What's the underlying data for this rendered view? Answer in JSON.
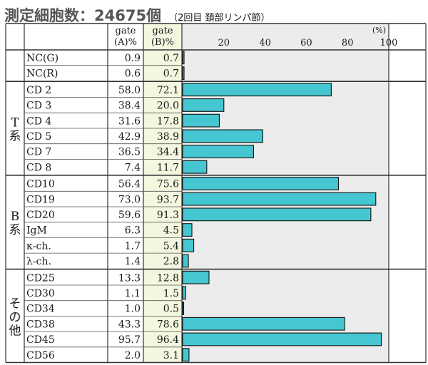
{
  "header": {
    "title": "測定細胞数：24675個",
    "subtitle": "（2回目 頚部リンパ節）"
  },
  "colors": {
    "bar": "#45c6d0",
    "bar_border": "#111111",
    "plot_bg": "#ececec",
    "col_b_bg": "#f4f6df",
    "grid": "#333333"
  },
  "chart_data": {
    "type": "bar",
    "orientation": "horizontal",
    "columns": {
      "gate_a": "gate\n(A)%",
      "gate_b": "gate\n(B)%"
    },
    "axis": {
      "unit": "(%)",
      "ticks": [
        20,
        40,
        60,
        80,
        100
      ],
      "xlim": [
        0,
        100
      ]
    },
    "bar_series": "gate (B)%",
    "groups": [
      {
        "label": "",
        "rows": [
          {
            "marker": "NC(G)",
            "gate_a": 0.9,
            "gate_b": 0.7
          },
          {
            "marker": "NC(R)",
            "gate_a": 0.6,
            "gate_b": 0.7
          }
        ]
      },
      {
        "label": "T系",
        "rows": [
          {
            "marker": "CD 2",
            "gate_a": 58.0,
            "gate_b": 72.1
          },
          {
            "marker": "CD 3",
            "gate_a": 38.4,
            "gate_b": 20.0
          },
          {
            "marker": "CD 4",
            "gate_a": 31.6,
            "gate_b": 17.8
          },
          {
            "marker": "CD 5",
            "gate_a": 42.9,
            "gate_b": 38.9
          },
          {
            "marker": "CD 7",
            "gate_a": 36.5,
            "gate_b": 34.4
          },
          {
            "marker": "CD 8",
            "gate_a": 7.4,
            "gate_b": 11.7
          }
        ]
      },
      {
        "label": "B系",
        "rows": [
          {
            "marker": "CD10",
            "gate_a": 56.4,
            "gate_b": 75.6
          },
          {
            "marker": "CD19",
            "gate_a": 73.0,
            "gate_b": 93.7
          },
          {
            "marker": "CD20",
            "gate_a": 59.6,
            "gate_b": 91.3
          },
          {
            "marker": "IgM",
            "gate_a": 6.3,
            "gate_b": 4.5
          },
          {
            "marker": "κ-ch.",
            "gate_a": 1.7,
            "gate_b": 5.4
          },
          {
            "marker": "λ-ch.",
            "gate_a": 1.4,
            "gate_b": 2.8
          }
        ]
      },
      {
        "label": "その他",
        "rows": [
          {
            "marker": "CD25",
            "gate_a": 13.3,
            "gate_b": 12.8
          },
          {
            "marker": "CD30",
            "gate_a": 1.1,
            "gate_b": 1.5
          },
          {
            "marker": "CD34",
            "gate_a": 1.0,
            "gate_b": 0.5
          },
          {
            "marker": "CD38",
            "gate_a": 43.3,
            "gate_b": 78.6
          },
          {
            "marker": "CD45",
            "gate_a": 95.7,
            "gate_b": 96.4
          },
          {
            "marker": "CD56",
            "gate_a": 2.0,
            "gate_b": 3.1
          }
        ]
      }
    ]
  }
}
